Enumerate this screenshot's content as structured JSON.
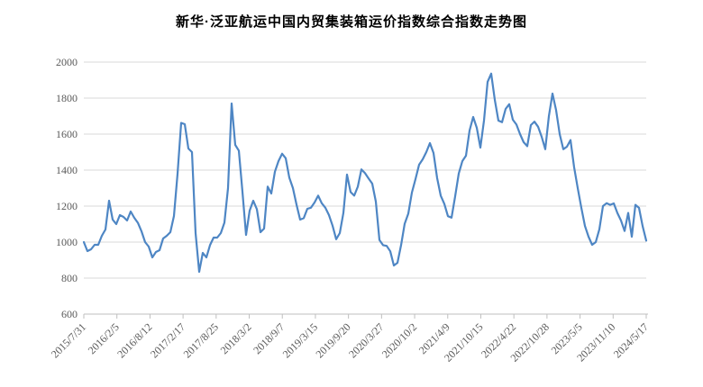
{
  "chart_data": {
    "type": "line",
    "title": "新华·泛亚航运中国内贸集装箱运价指数综合指数走势图",
    "ylim": [
      600,
      2000
    ],
    "y_ticks": [
      600,
      800,
      1000,
      1200,
      1400,
      1600,
      1800,
      2000
    ],
    "x_tick_labels": [
      "2015/7/31",
      "2016/2/5",
      "2016/8/12",
      "2017/2/17",
      "2017/8/25",
      "2018/3/2",
      "2018/9/7",
      "2019/3/15",
      "2019/9/20",
      "2020/3/27",
      "2020/10/2",
      "2021/4/9",
      "2021/10/15",
      "2022/4/22",
      "2022/10/28",
      "2023/5/5",
      "2023/11/10",
      "2024/5/17"
    ],
    "grid": "horizontal-only",
    "legend": "none",
    "series": [
      {
        "color": "#4e86c4",
        "values": [
          1000,
          950,
          960,
          985,
          985,
          1035,
          1070,
          1230,
          1125,
          1100,
          1150,
          1140,
          1120,
          1170,
          1135,
          1107,
          1060,
          1000,
          975,
          915,
          945,
          955,
          1020,
          1035,
          1055,
          1145,
          1380,
          1662,
          1655,
          1520,
          1500,
          1050,
          835,
          940,
          915,
          983,
          1025,
          1025,
          1050,
          1108,
          1300,
          1770,
          1540,
          1508,
          1280,
          1040,
          1175,
          1230,
          1183,
          1055,
          1075,
          1308,
          1270,
          1391,
          1450,
          1491,
          1466,
          1358,
          1300,
          1208,
          1125,
          1133,
          1185,
          1191,
          1220,
          1258,
          1216,
          1191,
          1150,
          1091,
          1016,
          1050,
          1162,
          1375,
          1278,
          1258,
          1308,
          1404,
          1383,
          1353,
          1325,
          1225,
          1012,
          983,
          979,
          949,
          870,
          885,
          983,
          1102,
          1158,
          1275,
          1350,
          1430,
          1460,
          1500,
          1550,
          1495,
          1356,
          1258,
          1212,
          1144,
          1136,
          1254,
          1381,
          1450,
          1480,
          1620,
          1695,
          1635,
          1525,
          1675,
          1890,
          1936,
          1790,
          1675,
          1666,
          1740,
          1766,
          1680,
          1653,
          1600,
          1555,
          1533,
          1650,
          1669,
          1641,
          1585,
          1516,
          1700,
          1825,
          1733,
          1600,
          1516,
          1530,
          1567,
          1416,
          1300,
          1191,
          1090,
          1030,
          985,
          1000,
          1071,
          1200,
          1216,
          1207,
          1215,
          1162,
          1120,
          1062,
          1162,
          1030,
          1207,
          1190,
          1089,
          1008
        ]
      }
    ],
    "colors": {
      "line": "#4e86c4",
      "gridline": "#d9d9d9",
      "axis": "#bfbfbf",
      "tick_label": "#595959",
      "title": "#000000",
      "background": "#ffffff"
    }
  }
}
